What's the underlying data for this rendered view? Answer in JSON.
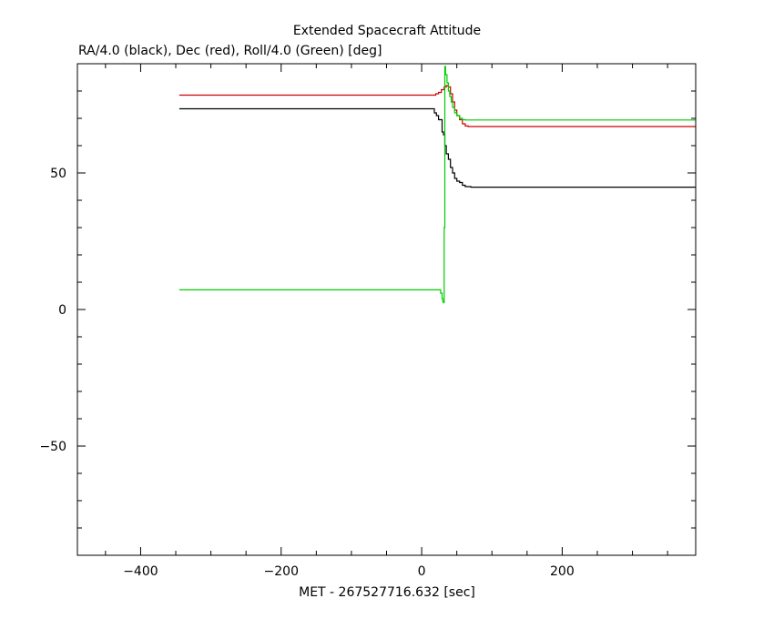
{
  "chart_data": {
    "type": "line",
    "title": "Extended Spacecraft Attitude",
    "subtitle": "RA/4.0 (black), Dec (red), Roll/4.0 (Green) [deg]",
    "xlabel": "MET - 267527716.632 [sec]",
    "ylabel": "",
    "xlim": [
      -490,
      390
    ],
    "ylim": [
      -90,
      90
    ],
    "x_ticks": [
      -400,
      -200,
      0,
      200
    ],
    "y_ticks": [
      -50,
      0,
      50
    ],
    "grid": false,
    "series": [
      {
        "color": "#000000",
        "x": [
          -345,
          15,
          18,
          21,
          24,
          27,
          29,
          31,
          33,
          35,
          38,
          41,
          44,
          47,
          50,
          54,
          58,
          62,
          66,
          70,
          75,
          390
        ],
        "values": [
          73.5,
          73.5,
          72,
          71,
          69.5,
          69.5,
          65,
          64,
          60,
          57,
          55,
          52,
          50,
          48,
          47,
          46.5,
          45.5,
          45,
          45,
          44.8,
          44.8,
          44.8
        ]
      },
      {
        "color": "#cc0000",
        "x": [
          -345,
          15,
          20,
          24,
          28,
          32,
          35,
          38,
          41,
          44,
          47,
          50,
          54,
          58,
          62,
          66,
          70,
          75,
          390
        ],
        "values": [
          78.5,
          78.5,
          79,
          79.5,
          80.5,
          81.5,
          82,
          81.5,
          79,
          76,
          73,
          71,
          69.5,
          68,
          67.2,
          67,
          67,
          67,
          67
        ]
      },
      {
        "color": "#00cc00",
        "x": [
          -345,
          25,
          27,
          29,
          30,
          31,
          32,
          33,
          34,
          36,
          38,
          40,
          42,
          44,
          47,
          50,
          54,
          58,
          62,
          66,
          70,
          75,
          390
        ],
        "values": [
          7.2,
          7.2,
          6,
          4,
          3,
          2.5,
          30,
          89,
          86,
          83,
          80,
          78,
          76,
          74,
          72,
          71,
          70,
          69.5,
          69.4,
          69.4,
          69.4,
          69.4,
          69.4
        ]
      }
    ]
  }
}
